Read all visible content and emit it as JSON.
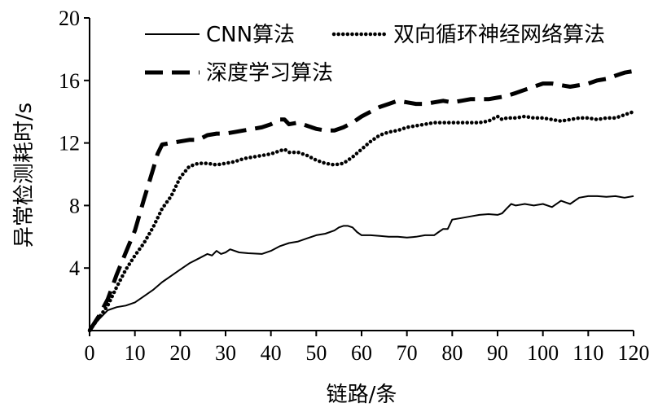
{
  "chart_data": {
    "type": "line",
    "xlabel": "链路/条",
    "ylabel": "异常检测耗时/s",
    "xlim": [
      0,
      120
    ],
    "ylim": [
      0,
      20
    ],
    "xticks": [
      0,
      10,
      20,
      30,
      40,
      50,
      60,
      70,
      80,
      90,
      100,
      110,
      120
    ],
    "yticks": [
      4,
      8,
      12,
      16,
      20
    ],
    "x_tick_labels": [
      "0",
      "10",
      "20",
      "30",
      "40",
      "50",
      "60",
      "70",
      "80",
      "90",
      "100",
      "110",
      "120"
    ],
    "y_tick_labels": [
      "4",
      "8",
      "12",
      "16",
      "20"
    ],
    "grid": false,
    "legend_position": "top-right",
    "series": [
      {
        "name": "CNN算法",
        "style": "solid",
        "color": "#000000",
        "x": [
          0,
          2,
          4,
          6,
          8,
          10,
          12,
          14,
          16,
          18,
          20,
          22,
          24,
          26,
          27,
          28,
          29,
          30,
          31,
          33,
          35,
          38,
          40,
          42,
          44,
          46,
          48,
          50,
          52,
          54,
          55,
          56,
          57,
          58,
          59,
          60,
          62,
          64,
          66,
          68,
          70,
          72,
          74,
          76,
          77,
          78,
          79,
          80,
          82,
          84,
          86,
          88,
          90,
          91,
          92,
          93,
          94,
          96,
          98,
          100,
          102,
          104,
          105,
          106,
          108,
          110,
          112,
          114,
          116,
          118,
          120
        ],
        "y": [
          0,
          0.7,
          1.3,
          1.5,
          1.6,
          1.8,
          2.2,
          2.6,
          3.1,
          3.5,
          3.9,
          4.3,
          4.6,
          4.9,
          4.8,
          5.1,
          4.9,
          5.0,
          5.2,
          5.0,
          4.95,
          4.9,
          5.1,
          5.4,
          5.6,
          5.7,
          5.9,
          6.1,
          6.2,
          6.4,
          6.6,
          6.7,
          6.7,
          6.6,
          6.3,
          6.1,
          6.1,
          6.05,
          6.0,
          6.0,
          5.95,
          6.0,
          6.1,
          6.1,
          6.3,
          6.5,
          6.5,
          7.1,
          7.2,
          7.3,
          7.4,
          7.45,
          7.4,
          7.5,
          7.8,
          8.1,
          8.0,
          8.1,
          8.0,
          8.1,
          7.9,
          8.3,
          8.2,
          8.1,
          8.5,
          8.6,
          8.6,
          8.55,
          8.6,
          8.5,
          8.6
        ]
      },
      {
        "name": "双向循环神经网络算法",
        "style": "dotted",
        "color": "#000000",
        "x": [
          0,
          2,
          4,
          6,
          8,
          10,
          12,
          14,
          16,
          18,
          20,
          22,
          24,
          26,
          28,
          30,
          32,
          34,
          36,
          38,
          40,
          42,
          43,
          44,
          46,
          48,
          50,
          52,
          54,
          56,
          58,
          60,
          62,
          64,
          66,
          68,
          70,
          72,
          74,
          76,
          78,
          80,
          82,
          84,
          86,
          88,
          90,
          91,
          92,
          94,
          96,
          98,
          100,
          102,
          104,
          106,
          108,
          110,
          112,
          114,
          116,
          118,
          120
        ],
        "y": [
          0,
          0.8,
          1.6,
          2.8,
          3.9,
          4.8,
          5.6,
          6.6,
          7.8,
          8.6,
          9.8,
          10.5,
          10.7,
          10.7,
          10.6,
          10.7,
          10.8,
          11.0,
          11.1,
          11.2,
          11.3,
          11.5,
          11.6,
          11.4,
          11.4,
          11.2,
          10.9,
          10.7,
          10.6,
          10.7,
          11.1,
          11.6,
          12.1,
          12.5,
          12.7,
          12.8,
          13.0,
          13.1,
          13.2,
          13.3,
          13.3,
          13.3,
          13.3,
          13.3,
          13.3,
          13.4,
          13.7,
          13.5,
          13.6,
          13.6,
          13.7,
          13.6,
          13.6,
          13.5,
          13.4,
          13.5,
          13.6,
          13.6,
          13.5,
          13.6,
          13.6,
          13.8,
          14.0
        ]
      },
      {
        "name": "深度学习算法",
        "style": "dashed",
        "color": "#000000",
        "x": [
          0,
          2,
          4,
          6,
          8,
          10,
          12,
          14,
          15,
          16,
          18,
          20,
          22,
          24,
          26,
          28,
          30,
          32,
          34,
          36,
          38,
          40,
          42,
          43,
          44,
          46,
          48,
          50,
          52,
          54,
          56,
          58,
          60,
          62,
          64,
          66,
          68,
          70,
          72,
          74,
          76,
          78,
          80,
          82,
          84,
          86,
          88,
          90,
          92,
          94,
          96,
          98,
          100,
          102,
          104,
          106,
          108,
          110,
          112,
          114,
          116,
          118,
          120
        ],
        "y": [
          0,
          0.9,
          2.0,
          3.6,
          5.0,
          6.4,
          8.4,
          10.3,
          11.3,
          11.9,
          12.0,
          12.1,
          12.2,
          12.2,
          12.5,
          12.6,
          12.6,
          12.7,
          12.8,
          12.9,
          13.0,
          13.2,
          13.5,
          13.5,
          13.2,
          13.3,
          13.1,
          12.9,
          12.8,
          12.8,
          13.0,
          13.3,
          13.7,
          14.0,
          14.3,
          14.5,
          14.7,
          14.6,
          14.5,
          14.5,
          14.6,
          14.7,
          14.6,
          14.7,
          14.8,
          14.8,
          14.8,
          14.9,
          15.0,
          15.2,
          15.4,
          15.6,
          15.8,
          15.8,
          15.7,
          15.6,
          15.7,
          15.8,
          16.0,
          16.1,
          16.3,
          16.5,
          16.6
        ]
      }
    ]
  }
}
